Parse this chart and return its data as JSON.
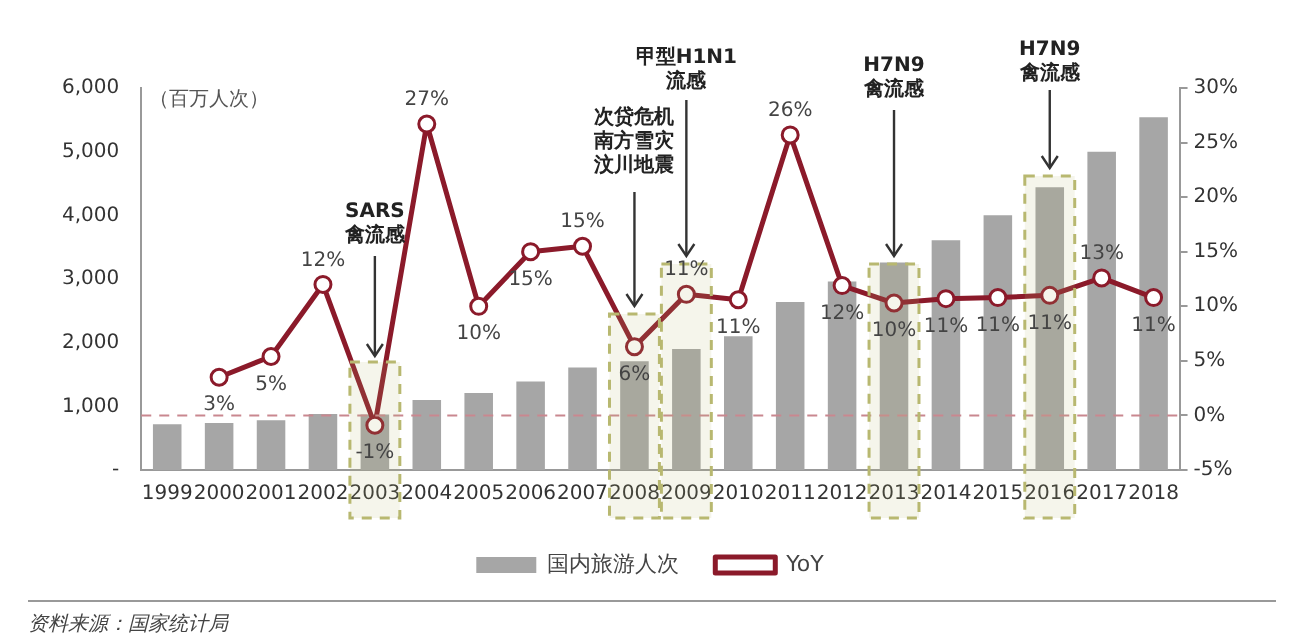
{
  "chart_data": {
    "type": "bar",
    "ylabel": "（百万人次）",
    "categories": [
      "1999",
      "2000",
      "2001",
      "2002",
      "2003",
      "2004",
      "2005",
      "2006",
      "2007",
      "2008",
      "2009",
      "2010",
      "2011",
      "2012",
      "2013",
      "2014",
      "2015",
      "2016",
      "2017",
      "2018"
    ],
    "series": [
      {
        "name": "国内旅游人次",
        "color": "#a6a6a6",
        "values": [
          720,
          740,
          780,
          880,
          870,
          1100,
          1210,
          1390,
          1610,
          1710,
          1900,
          2100,
          2640,
          2960,
          3260,
          3610,
          4000,
          4440,
          5000,
          5540
        ]
      },
      {
        "name": "YoY",
        "type": "line",
        "axis": "y2",
        "color": "#8b1a2a",
        "marker": "circle",
        "values": [
          null,
          3.5,
          5.4,
          12.0,
          -0.9,
          26.7,
          10.0,
          15.0,
          15.5,
          6.3,
          11.1,
          10.6,
          25.7,
          11.9,
          10.3,
          10.7,
          10.8,
          11.0,
          12.6,
          10.8
        ],
        "value_labels": [
          null,
          "3%",
          "5%",
          "12%",
          "-1%",
          "27%",
          "10%",
          "15%",
          "15%",
          "6%",
          "11%",
          "11%",
          "26%",
          "12%",
          "10%",
          "11%",
          "11%",
          "11%",
          "13%",
          "11%"
        ]
      }
    ],
    "ylim": [
      0,
      6000
    ],
    "yticks": [
      {
        "value": 0,
        "label": "-"
      },
      {
        "value": 1000,
        "label": "1,000"
      },
      {
        "value": 2000,
        "label": "2,000"
      },
      {
        "value": 3000,
        "label": "3,000"
      },
      {
        "value": 4000,
        "label": "4,000"
      },
      {
        "value": 5000,
        "label": "5,000"
      },
      {
        "value": 6000,
        "label": "6,000"
      }
    ],
    "y2lim": [
      -5,
      30
    ],
    "y2ticks": [
      {
        "value": -5,
        "label": "-5%"
      },
      {
        "value": 0,
        "label": "0%"
      },
      {
        "value": 5,
        "label": "5%"
      },
      {
        "value": 10,
        "label": "10%"
      },
      {
        "value": 15,
        "label": "15%"
      },
      {
        "value": 20,
        "label": "20%"
      },
      {
        "value": 25,
        "label": "25%"
      },
      {
        "value": 30,
        "label": "30%"
      }
    ],
    "ref_lines": [
      {
        "axis": "y2",
        "value": 0,
        "color": "#c9878f",
        "line_style": "dashed"
      }
    ],
    "bands": [
      {
        "axis": "x",
        "from": "2003",
        "to": "2003",
        "label": "SARS 禽流感",
        "color": "#b8b870"
      },
      {
        "axis": "x",
        "from": "2008",
        "to": "2008",
        "label": "次贷危机南方雪灾汶川地震",
        "color": "#b8b870"
      },
      {
        "axis": "x",
        "from": "2009",
        "to": "2009",
        "label": "甲型H1N1流感",
        "color": "#b8b870"
      },
      {
        "axis": "x",
        "from": "2013",
        "to": "2013",
        "label": "H7N9 禽流感",
        "color": "#b8b870"
      },
      {
        "axis": "x",
        "from": "2016",
        "to": "2016",
        "label": "H7N9 禽流感",
        "color": "#b8b870"
      }
    ],
    "annotations": [
      "资料来源：国家统计局"
    ],
    "grid": false,
    "legend": "bottom"
  }
}
